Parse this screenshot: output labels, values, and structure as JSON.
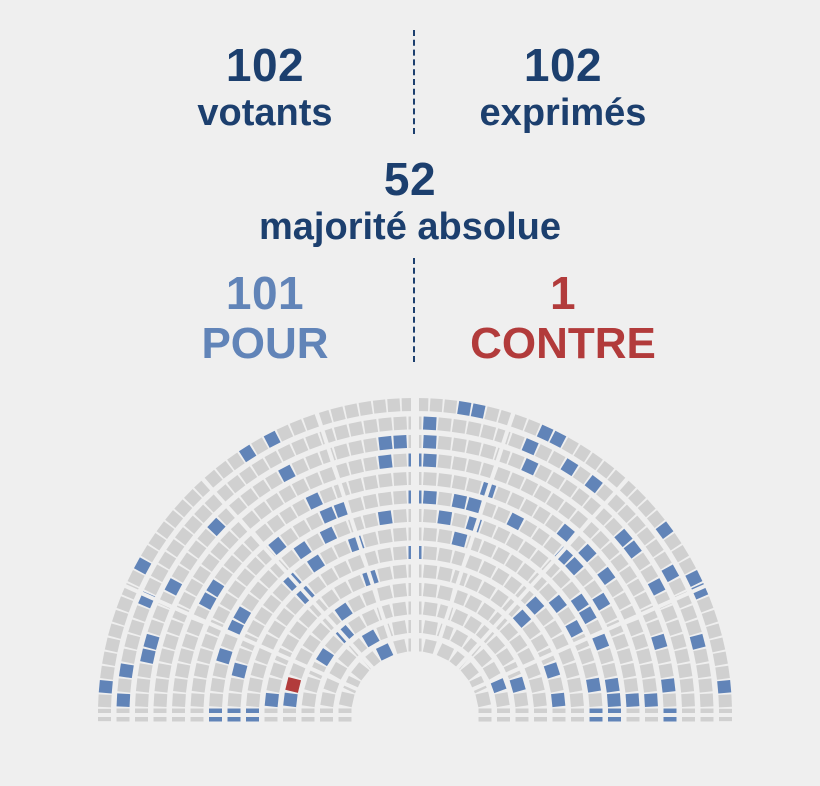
{
  "chart_data": {
    "type": "hemicycle",
    "votants": {
      "value": "102",
      "label": "votants"
    },
    "exprimes": {
      "value": "102",
      "label": "exprimés"
    },
    "majorite": {
      "value": "52",
      "label": "majorité absolue"
    },
    "pour": {
      "value": "101",
      "label": "POUR",
      "count": 101
    },
    "contre": {
      "value": "1",
      "label": "CONTRE",
      "count": 1
    },
    "total_seats": 577,
    "colors": {
      "pour": "#6184b8",
      "contre": "#b23b3b",
      "absent": "#d0d0d0",
      "text": "#1c3f6e",
      "background": "#efefef"
    }
  }
}
